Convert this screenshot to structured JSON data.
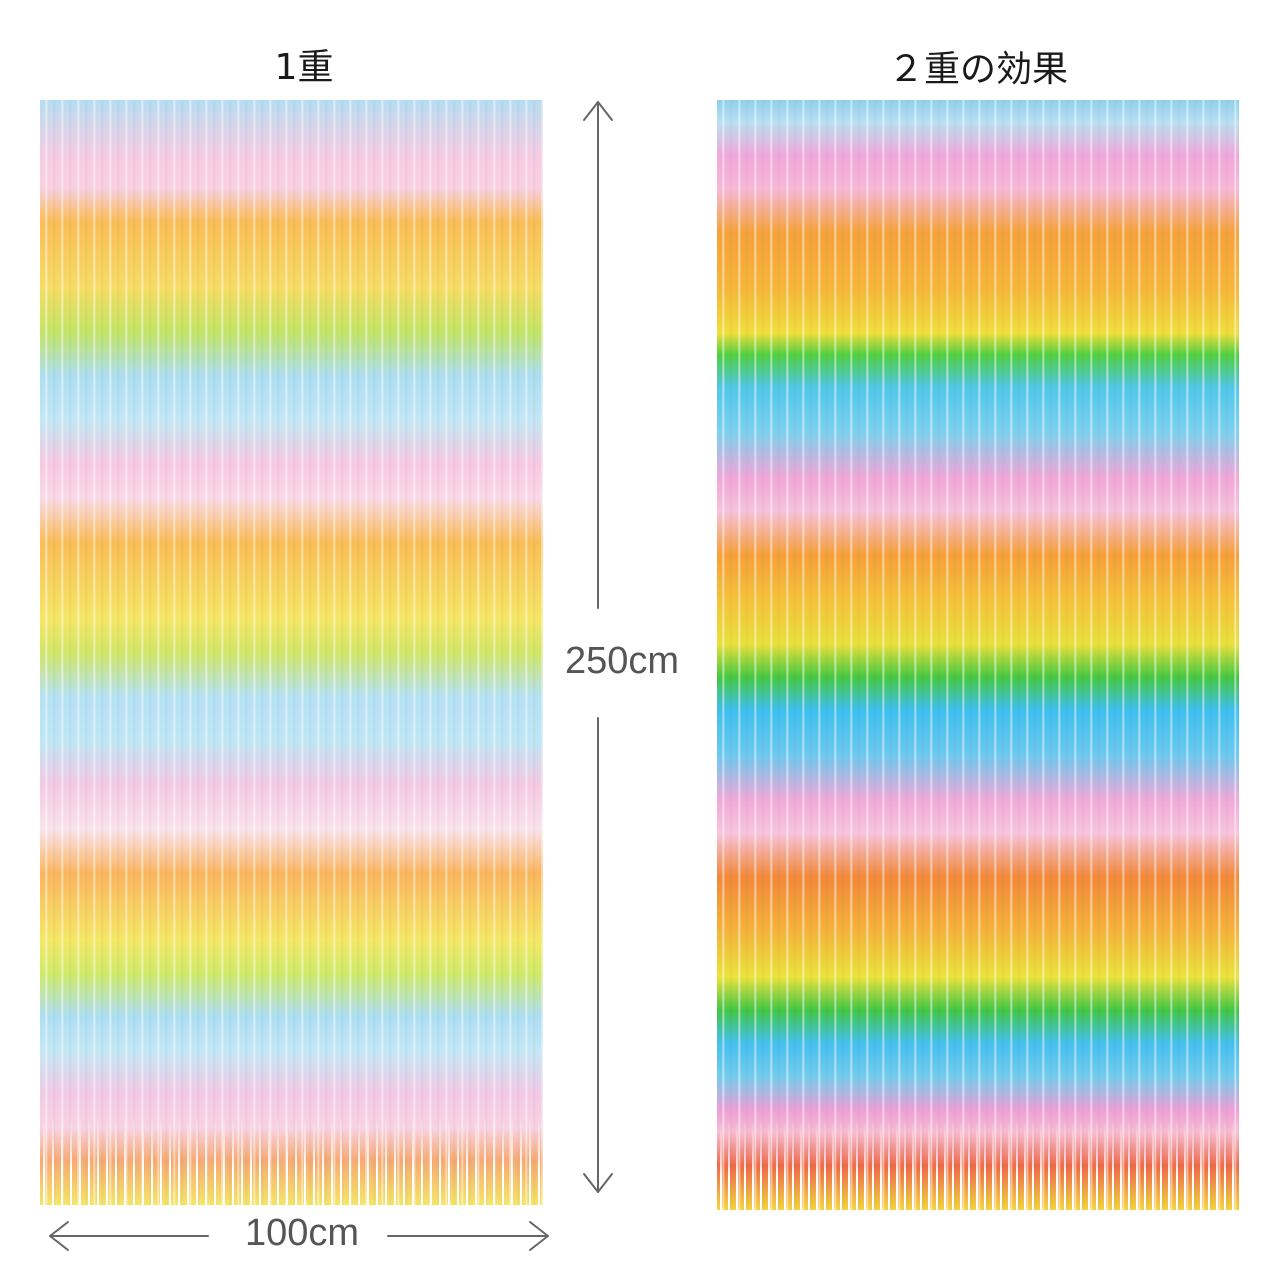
{
  "labels": {
    "single": "1重",
    "double": "２重の効果"
  },
  "dimensions": {
    "height": "250cm",
    "width": "100cm"
  },
  "colors": {
    "blue": "#8fd3f0",
    "pink": "#f7b3d8",
    "orange": "#f9b23a",
    "yellow": "#f2e44a",
    "green": "#8fd84a",
    "red": "#ef6a4a",
    "arrow": "#666666"
  }
}
